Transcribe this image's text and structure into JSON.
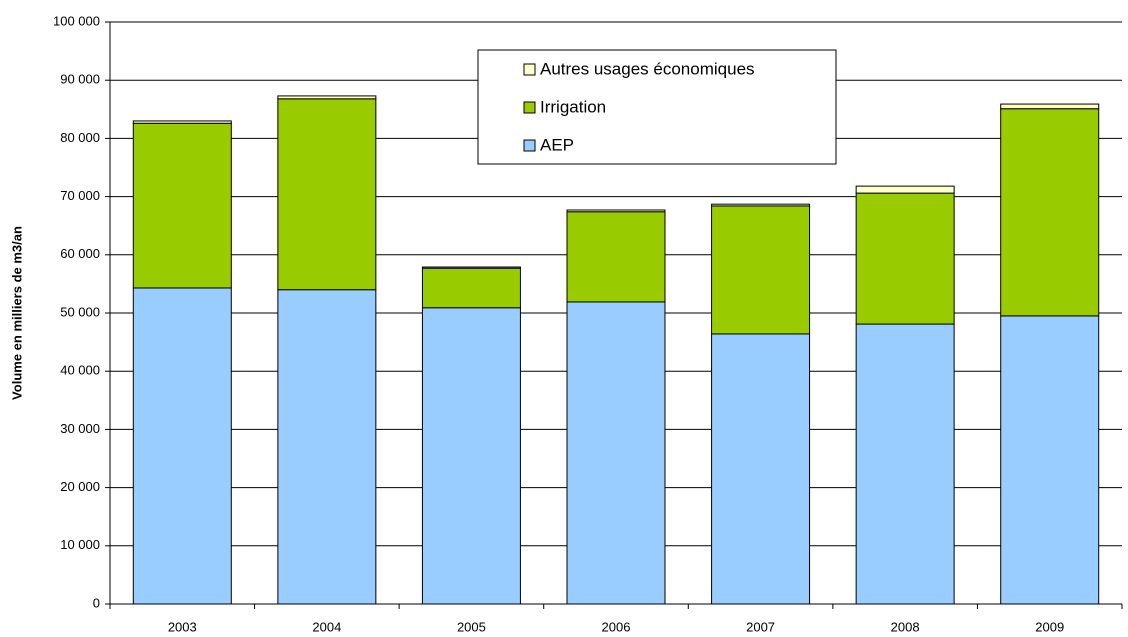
{
  "chart_data": {
    "type": "stacked_bar",
    "y_label": "Volume en milliers de m3/an",
    "categories": [
      "2003",
      "2004",
      "2005",
      "2006",
      "2007",
      "2008",
      "2009"
    ],
    "series": [
      {
        "name": "AEP",
        "color": "#99ccff",
        "values": [
          54300,
          54000,
          50900,
          51900,
          46400,
          48100,
          49500
        ]
      },
      {
        "name": "Irrigation",
        "color": "#99cc00",
        "values": [
          28300,
          32800,
          6800,
          15500,
          22000,
          22500,
          35600
        ]
      },
      {
        "name": "Autres usages économiques",
        "color": "#ffffcc",
        "values": [
          400,
          500,
          200,
          300,
          300,
          1200,
          800
        ]
      }
    ],
    "ylim": [
      0,
      100000
    ],
    "yticks": [
      0,
      {
        "value": 10000,
        "label": "10 000"
      },
      {
        "value": 20000,
        "label": "20 000"
      },
      {
        "value": 30000,
        "label": "30 000"
      },
      {
        "value": 40000,
        "label": "40 000"
      },
      {
        "value": 50000,
        "label": "50 000"
      },
      {
        "value": 60000,
        "label": "60 000"
      },
      {
        "value": 70000,
        "label": "70 000"
      },
      {
        "value": 80000,
        "label": "80 000"
      },
      {
        "value": 90000,
        "label": "90 000"
      },
      {
        "value": 100000,
        "label": "100 000"
      }
    ],
    "grid": true
  }
}
